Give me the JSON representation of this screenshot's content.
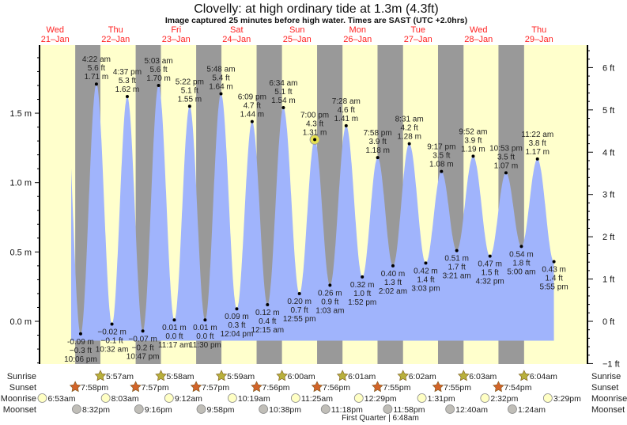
{
  "chart_data": {
    "type": "area",
    "title": "Clovelly: at high  ordinary tide at 1.3m (4.3ft)",
    "subtitle": "Image captured 25 minutes before high water. Times are SAST (UTC +2.0hrs)",
    "days": [
      {
        "dow": "Wed",
        "date": "21–Jan"
      },
      {
        "dow": "Thu",
        "date": "22–Jan"
      },
      {
        "dow": "Fri",
        "date": "23–Jan"
      },
      {
        "dow": "Sat",
        "date": "24–Jan"
      },
      {
        "dow": "Sun",
        "date": "25–Jan"
      },
      {
        "dow": "Mon",
        "date": "26–Jan"
      },
      {
        "dow": "Tue",
        "date": "27–Jan"
      },
      {
        "dow": "Wed",
        "date": "28–Jan"
      },
      {
        "dow": "Thu",
        "date": "29–Jan"
      }
    ],
    "y_left": {
      "unit": "m",
      "ticks": [
        "1.5 m",
        "1.0 m",
        "0.5 m",
        "0.0 m"
      ],
      "tick_values": [
        1.5,
        1.0,
        0.5,
        0.0
      ]
    },
    "y_right": {
      "unit": "ft",
      "ticks": [
        "6 ft",
        "5 ft",
        "4 ft",
        "3 ft",
        "2 ft",
        "1 ft",
        "0 ft",
        "−1 ft"
      ],
      "tick_values": [
        6,
        5,
        4,
        3,
        2,
        1,
        0,
        -1
      ]
    },
    "ylim_m": [
      -0.3,
      1.99
    ],
    "current": {
      "day": 4,
      "time": "7:00 pm",
      "m": 1.31
    },
    "extremes": [
      {
        "type": "low",
        "day": 0,
        "time": "10:06 pm",
        "m": "-0.09 m",
        "ft": "−0.3 ft",
        "v": -0.09
      },
      {
        "type": "high",
        "day": 1,
        "time": "4:22 am",
        "m": "1.71 m",
        "ft": "5.6 ft",
        "v": 1.71
      },
      {
        "type": "low",
        "day": 1,
        "time": "10:32 am",
        "m": "−0.02 m",
        "ft": "−0.1 ft",
        "v": -0.02
      },
      {
        "type": "high",
        "day": 1,
        "time": "4:37 pm",
        "m": "1.62 m",
        "ft": "5.3 ft",
        "v": 1.62
      },
      {
        "type": "low",
        "day": 1,
        "time": "10:47 pm",
        "m": "−0.07 m",
        "ft": "−0.2 ft",
        "v": -0.07
      },
      {
        "type": "high",
        "day": 2,
        "time": "5:03 am",
        "m": "1.70 m",
        "ft": "5.6 ft",
        "v": 1.7
      },
      {
        "type": "low",
        "day": 2,
        "time": "11:17 am",
        "m": "0.01 m",
        "ft": "0.0 ft",
        "v": 0.01
      },
      {
        "type": "high",
        "day": 2,
        "time": "5:22 pm",
        "m": "1.55 m",
        "ft": "5.1 ft",
        "v": 1.55
      },
      {
        "type": "low",
        "day": 2,
        "time": "11:30 pm",
        "m": "0.01 m",
        "ft": "0.0 ft",
        "v": 0.01
      },
      {
        "type": "high",
        "day": 3,
        "time": "5:48 am",
        "m": "1.64 m",
        "ft": "5.4 ft",
        "v": 1.64
      },
      {
        "type": "low",
        "day": 3,
        "time": "12:04 pm",
        "m": "0.09 m",
        "ft": "0.3 ft",
        "v": 0.09
      },
      {
        "type": "high",
        "day": 3,
        "time": "6:09 pm",
        "m": "1.44 m",
        "ft": "4.7 ft",
        "v": 1.44
      },
      {
        "type": "low",
        "day": 4,
        "time": "12:15 am",
        "m": "0.12 m",
        "ft": "0.4 ft",
        "v": 0.12
      },
      {
        "type": "high",
        "day": 4,
        "time": "6:34 am",
        "m": "1.54 m",
        "ft": "5.1 ft",
        "v": 1.54
      },
      {
        "type": "low",
        "day": 4,
        "time": "12:55 pm",
        "m": "0.20 m",
        "ft": "0.7 ft",
        "v": 0.2
      },
      {
        "type": "high",
        "day": 4,
        "time": "7:00 pm",
        "m": "1.31 m",
        "ft": "4.3 ft",
        "v": 1.31
      },
      {
        "type": "low",
        "day": 5,
        "time": "1:03 am",
        "m": "0.26 m",
        "ft": "0.9 ft",
        "v": 0.26
      },
      {
        "type": "high",
        "day": 5,
        "time": "7:28 am",
        "m": "1.41 m",
        "ft": "4.6 ft",
        "v": 1.41
      },
      {
        "type": "low",
        "day": 5,
        "time": "1:52 pm",
        "m": "0.32 m",
        "ft": "1.0 ft",
        "v": 0.32
      },
      {
        "type": "high",
        "day": 5,
        "time": "7:58 pm",
        "m": "1.18 m",
        "ft": "3.9 ft",
        "v": 1.18
      },
      {
        "type": "low",
        "day": 6,
        "time": "2:02 am",
        "m": "0.40 m",
        "ft": "1.3 ft",
        "v": 0.4
      },
      {
        "type": "high",
        "day": 6,
        "time": "8:31 am",
        "m": "1.28 m",
        "ft": "4.2 ft",
        "v": 1.28
      },
      {
        "type": "low",
        "day": 6,
        "time": "3:03 pm",
        "m": "0.42 m",
        "ft": "1.4 ft",
        "v": 0.42
      },
      {
        "type": "high",
        "day": 6,
        "time": "9:17 pm",
        "m": "1.08 m",
        "ft": "3.5 ft",
        "v": 1.08
      },
      {
        "type": "low",
        "day": 7,
        "time": "3:21 am",
        "m": "0.51 m",
        "ft": "1.7 ft",
        "v": 0.51
      },
      {
        "type": "high",
        "day": 7,
        "time": "9:52 am",
        "m": "1.19 m",
        "ft": "3.9 ft",
        "v": 1.19
      },
      {
        "type": "low",
        "day": 7,
        "time": "4:32 pm",
        "m": "0.47 m",
        "ft": "1.5 ft",
        "v": 0.47
      },
      {
        "type": "high",
        "day": 7,
        "time": "10:53 pm",
        "m": "1.07 m",
        "ft": "3.5 ft",
        "v": 1.07
      },
      {
        "type": "low",
        "day": 8,
        "time": "5:00 am",
        "m": "0.54 m",
        "ft": "1.8 ft",
        "v": 0.54
      },
      {
        "type": "high",
        "day": 8,
        "time": "11:22 am",
        "m": "1.17 m",
        "ft": "3.8 ft",
        "v": 1.17
      },
      {
        "type": "low",
        "day": 8,
        "time": "5:55 pm",
        "m": "0.43 m",
        "ft": "1.4 ft",
        "v": 0.43
      }
    ]
  },
  "astro": {
    "row_labels": [
      "Sunrise",
      "Sunset",
      "Moonrise",
      "Moonset"
    ],
    "sunrise": [
      {
        "day": 1,
        "time": "5:57am"
      },
      {
        "day": 2,
        "time": "5:58am"
      },
      {
        "day": 3,
        "time": "5:59am"
      },
      {
        "day": 4,
        "time": "6:00am"
      },
      {
        "day": 5,
        "time": "6:01am"
      },
      {
        "day": 6,
        "time": "6:02am"
      },
      {
        "day": 7,
        "time": "6:03am"
      },
      {
        "day": 8,
        "time": "6:04am"
      }
    ],
    "sunset": [
      {
        "day": 0,
        "time": "7:58pm"
      },
      {
        "day": 1,
        "time": "7:57pm"
      },
      {
        "day": 2,
        "time": "7:57pm"
      },
      {
        "day": 3,
        "time": "7:56pm"
      },
      {
        "day": 4,
        "time": "7:56pm"
      },
      {
        "day": 5,
        "time": "7:55pm"
      },
      {
        "day": 6,
        "time": "7:55pm"
      },
      {
        "day": 7,
        "time": "7:54pm"
      }
    ],
    "moonrise": [
      {
        "day": 0,
        "time": "6:53am"
      },
      {
        "day": 1,
        "time": "8:03am"
      },
      {
        "day": 2,
        "time": "9:12am"
      },
      {
        "day": 3,
        "time": "10:19am"
      },
      {
        "day": 4,
        "time": "11:25am"
      },
      {
        "day": 5,
        "time": "12:29pm"
      },
      {
        "day": 6,
        "time": "1:31pm"
      },
      {
        "day": 7,
        "time": "2:32pm"
      },
      {
        "day": 8,
        "time": "3:29pm"
      }
    ],
    "moonset": [
      {
        "day": 0,
        "time": "8:32pm"
      },
      {
        "day": 1,
        "time": "9:16pm"
      },
      {
        "day": 2,
        "time": "9:58pm"
      },
      {
        "day": 3,
        "time": "10:38pm"
      },
      {
        "day": 4,
        "time": "11:18pm"
      },
      {
        "day": 5,
        "time": "11:58pm"
      },
      {
        "day": 7,
        "time": "12:40am"
      },
      {
        "day": 8,
        "time": "1:24am"
      }
    ],
    "moon_phase": "First Quarter | 6:48am"
  },
  "colors": {
    "day": "#ffffcc",
    "night": "#999999",
    "water": "#a0b4fc",
    "day_label": "#ff2222",
    "sunrise_star": "#b8b03c",
    "sunset_star": "#d2642a",
    "moonrise": "#ffffc4",
    "moonset": "#c0beb8",
    "current_marker": "#e6e050"
  }
}
